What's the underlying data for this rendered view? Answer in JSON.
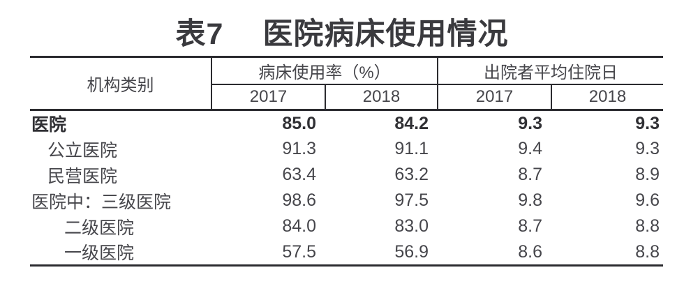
{
  "title": {
    "prefix": "表7",
    "main": "医院病床使用情况"
  },
  "table": {
    "col1_header": "机构类别",
    "groups": [
      {
        "label": "病床使用率（%）",
        "sub": [
          "2017",
          "2018"
        ]
      },
      {
        "label": "出院者平均住院日",
        "sub": [
          "2017",
          "2018"
        ]
      }
    ],
    "rows": [
      {
        "label": "医院",
        "indent": 0,
        "bold": true,
        "values": [
          "85.0",
          "84.2",
          "9.3",
          "9.3"
        ]
      },
      {
        "label": "公立医院",
        "indent": 1,
        "bold": false,
        "values": [
          "91.3",
          "91.1",
          "9.4",
          "9.3"
        ]
      },
      {
        "label": "民营医院",
        "indent": 1,
        "bold": false,
        "values": [
          "63.4",
          "63.2",
          "8.7",
          "8.9"
        ]
      },
      {
        "label": "医院中：三级医院",
        "indent": 0,
        "bold": false,
        "values": [
          "98.6",
          "97.5",
          "9.8",
          "9.6"
        ]
      },
      {
        "label": "二级医院",
        "indent": 2,
        "bold": false,
        "values": [
          "84.0",
          "83.0",
          "8.7",
          "8.8"
        ]
      },
      {
        "label": "一级医院",
        "indent": 2,
        "bold": false,
        "values": [
          "57.5",
          "56.9",
          "8.6",
          "8.8"
        ]
      }
    ]
  },
  "chart_data": {
    "type": "table",
    "title": "表7 医院病床使用情况",
    "column_groups": [
      "病床使用率（%）",
      "出院者平均住院日"
    ],
    "columns": [
      "机构类别",
      "病床使用率2017",
      "病床使用率2018",
      "平均住院日2017",
      "平均住院日2018"
    ],
    "rows": [
      [
        "医院",
        85.0,
        84.2,
        9.3,
        9.3
      ],
      [
        "公立医院",
        91.3,
        91.1,
        9.4,
        9.3
      ],
      [
        "民营医院",
        63.4,
        63.2,
        8.7,
        8.9
      ],
      [
        "医院中：三级医院",
        98.6,
        97.5,
        9.8,
        9.6
      ],
      [
        "二级医院",
        84.0,
        83.0,
        8.7,
        8.8
      ],
      [
        "一级医院",
        57.5,
        56.9,
        8.6,
        8.8
      ]
    ]
  },
  "colors": {
    "line": "#2b2b2f",
    "text": "#46464b",
    "text-bold": "#303034",
    "title": "#3a3a3e",
    "bg": "#ffffff"
  }
}
